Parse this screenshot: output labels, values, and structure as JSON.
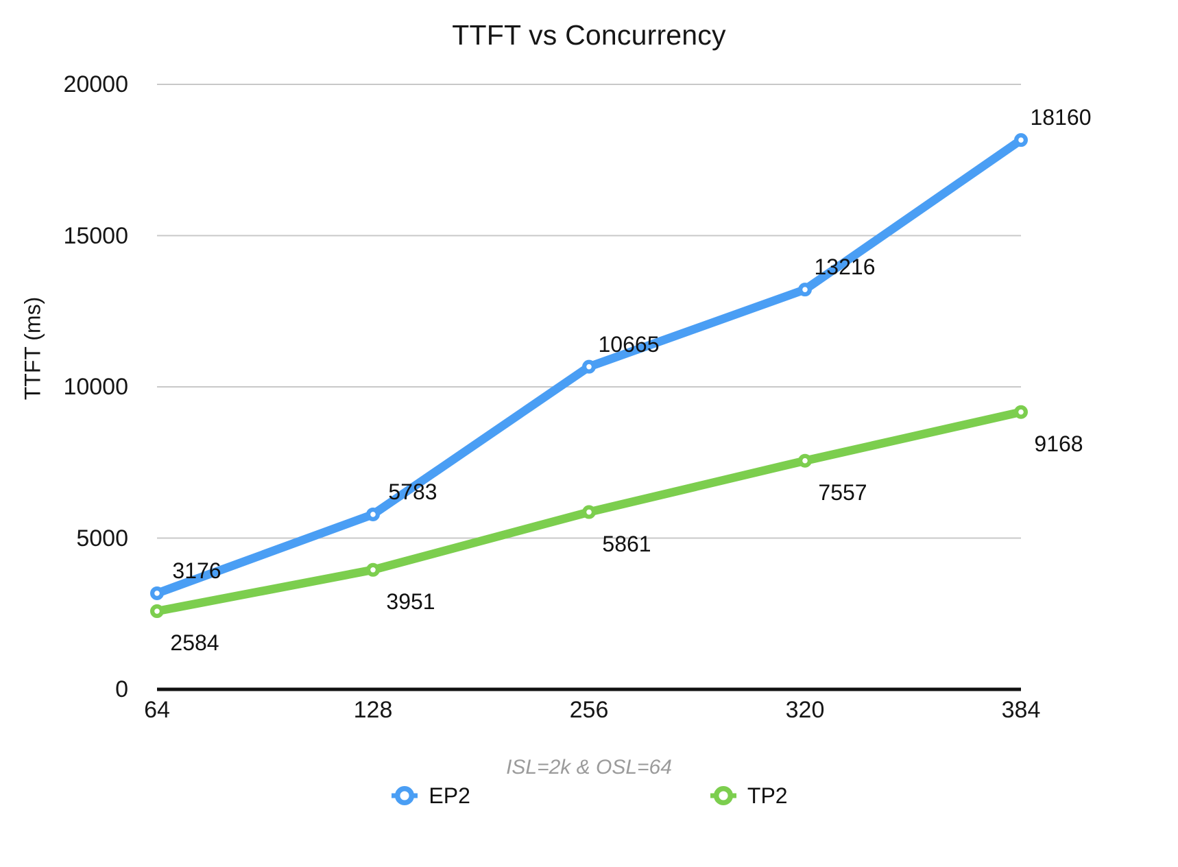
{
  "chart_data": {
    "type": "line",
    "title": "TTFT vs Concurrency",
    "ylabel": "TTFT (ms)",
    "xlabel_note": "ISL=2k & OSL=64",
    "categories": [
      "64",
      "128",
      "256",
      "320",
      "384"
    ],
    "y_ticks": [
      0,
      5000,
      10000,
      15000,
      20000
    ],
    "ylim": [
      0,
      20000
    ],
    "grid": "horizontal-only",
    "legend_position": "bottom-center",
    "series": [
      {
        "name": "EP2",
        "color": "#4A9EF4",
        "values": [
          3176,
          5783,
          10665,
          13216,
          18160
        ]
      },
      {
        "name": "TP2",
        "color": "#7CCE4E",
        "values": [
          2584,
          3951,
          5861,
          7557,
          9168
        ]
      }
    ],
    "colors": {
      "gridline": "#C8C8C8",
      "axis": "#111111",
      "note_text": "#9B9B9B",
      "label_text": "#111111",
      "background": "#FFFFFF"
    }
  }
}
